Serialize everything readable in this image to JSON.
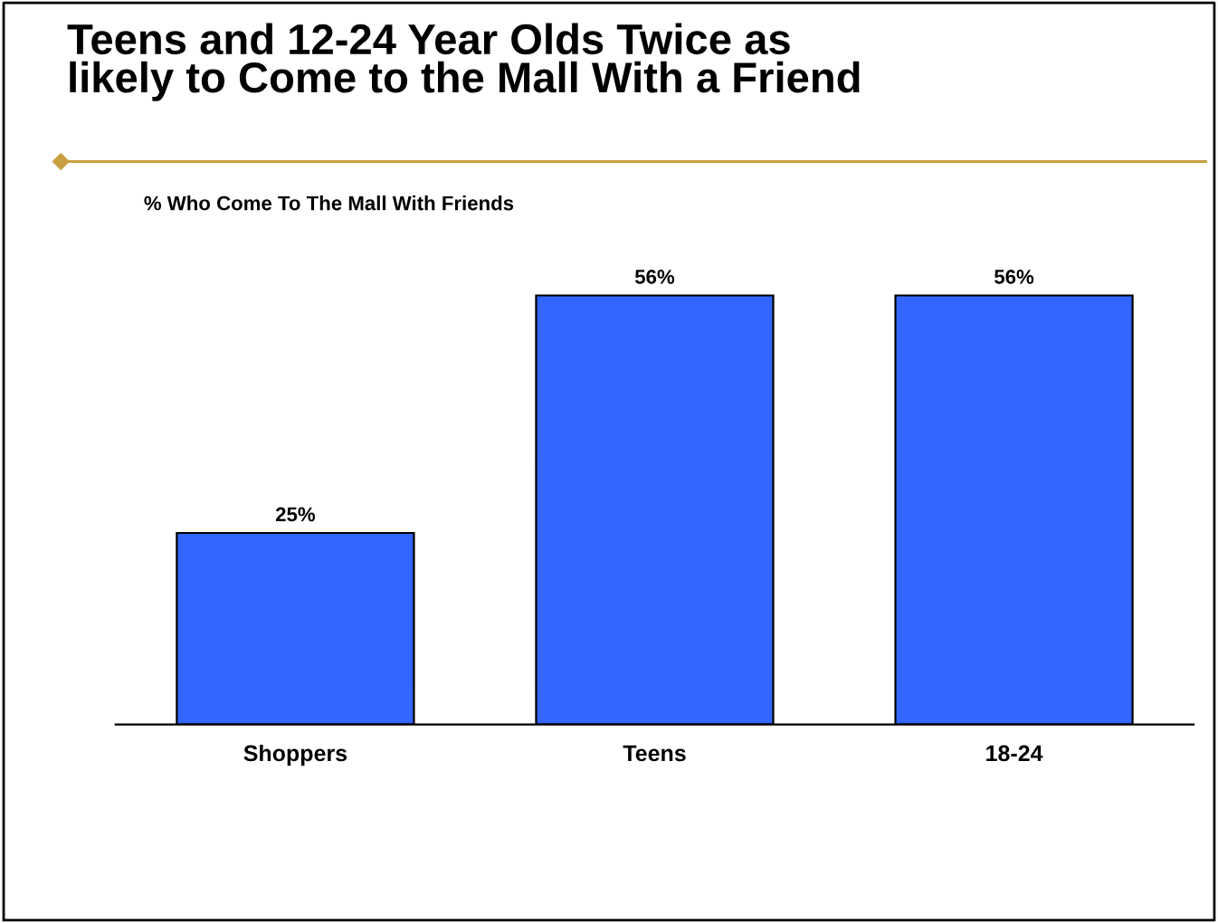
{
  "chart_data": {
    "type": "bar",
    "title": "Teens and 12-24 Year Olds Twice as\nlikely to Come to the Mall With a Friend",
    "subtitle": "% Who Come To The Mall With Friends",
    "categories": [
      "Shoppers",
      "Teens",
      "18-24"
    ],
    "values": [
      25,
      56,
      56
    ],
    "color": "#3366ff",
    "value_labels": [
      "25%",
      "56%",
      "56%"
    ],
    "grid": false,
    "legend": false
  }
}
